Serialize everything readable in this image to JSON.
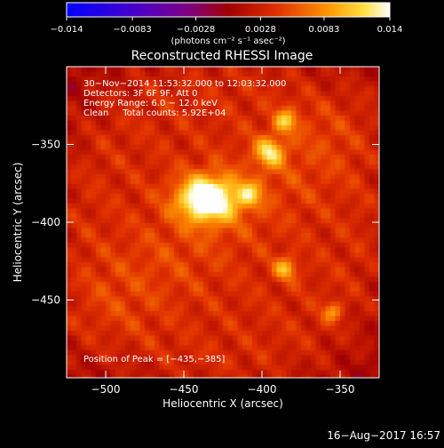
{
  "chart_data": {
    "type": "heatmap",
    "title": "Reconstructed RHESSI Image",
    "xlabel": "Heliocentric X (arcsec)",
    "ylabel": "Heliocentric Y (arcsec)",
    "xlim": [
      -525,
      -325
    ],
    "ylim": [
      -500,
      -300
    ],
    "x_ticks": [
      -500,
      -450,
      -400,
      -350
    ],
    "y_ticks": [
      -350,
      -400,
      -450
    ],
    "x_tick_labels": [
      "−500",
      "−450",
      "−400",
      "−350"
    ],
    "y_tick_labels": [
      "−350",
      "−400",
      "−450"
    ],
    "colorbar": {
      "range": [
        -0.014,
        0.014
      ],
      "tick_values": [
        -0.014,
        -0.0083,
        -0.0028,
        0.0028,
        0.0083,
        0.014
      ],
      "tick_labels": [
        "−0.014",
        "−0.0083",
        "−0.0028",
        "0.0028",
        "0.0083",
        "0.014"
      ],
      "label": "(photons cm⁻² s⁻¹ asec⁻²)",
      "colormap": "blue-purple-red-orange-yellow-white"
    },
    "annotations": [
      "30−Nov−2014 11:53:32.000 to 12:03:32.000",
      "Detectors: 3F 6F 9F, Att 0",
      "Energy Range: 6.0 − 12.0 keV",
      "Clean     Total counts: 5.92E+04"
    ],
    "peak_label": "Position of Peak = [−435,−385]",
    "sources": [
      {
        "x": -435,
        "y": -385,
        "value": 0.014
      },
      {
        "x": -395,
        "y": -355,
        "value": 0.008
      },
      {
        "x": -385,
        "y": -335,
        "value": 0.007
      },
      {
        "x": -408,
        "y": -382,
        "value": 0.006
      },
      {
        "x": -385,
        "y": -430,
        "value": 0.0065
      },
      {
        "x": -355,
        "y": -458,
        "value": 0.005
      }
    ]
  },
  "footer": {
    "date": "16−Aug−2017 16:57"
  }
}
